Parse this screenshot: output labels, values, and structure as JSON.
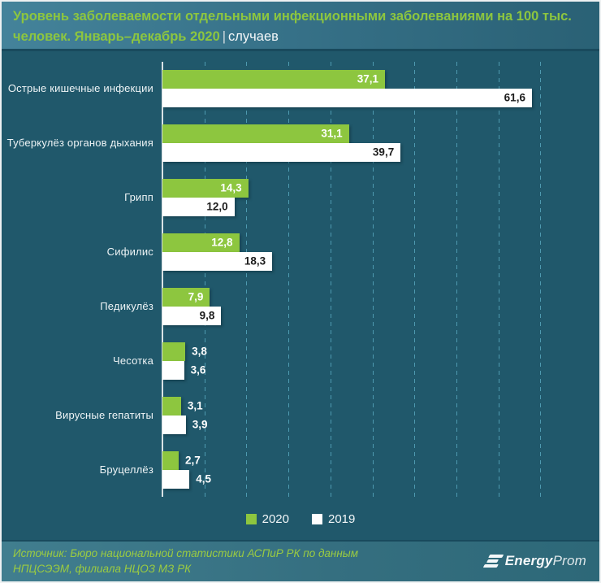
{
  "header": {
    "title": "Уровень заболеваемости отдельными инфекционными заболеваниями на 100 тыс. человек. Январь–декабрь 2020",
    "separator": "|",
    "unit": "случаев"
  },
  "chart_data": {
    "type": "bar",
    "orientation": "horizontal",
    "title": "Уровень заболеваемости отдельными инфекционными заболеваниями на 100 тыс. человек. Январь–декабрь 2020, случаев",
    "categories": [
      "Острые кишечные инфекции",
      "Туберкулёз органов дыхания",
      "Грипп",
      "Сифилис",
      "Педикулёз",
      "Чесотка",
      "Вирусные гепатиты",
      "Бруцеллёз"
    ],
    "series": [
      {
        "name": "2020",
        "color": "#8dc63f",
        "label_color_inside": "#ffffff",
        "values": [
          37.1,
          31.1,
          14.3,
          12.8,
          7.9,
          3.8,
          3.1,
          2.7
        ]
      },
      {
        "name": "2019",
        "color": "#ffffff",
        "label_color_inside": "#1c1c1c",
        "values": [
          61.6,
          39.7,
          12.0,
          18.3,
          9.8,
          3.6,
          3.9,
          4.5
        ]
      }
    ],
    "xlim": [
      0,
      70
    ],
    "gridline_step": 7,
    "gridlines_visible": 9,
    "grid": true,
    "legend_position": "bottom",
    "value_decimal_separator": ",",
    "label_outside_below": 7
  },
  "footer": {
    "source": "Источник: Бюро национальной статистики АСПиР РК по данным НПЦСЭЭМ, филиала НЦОЗ МЗ РК",
    "logo_bold": "Energy",
    "logo_light": "Prom"
  },
  "colors": {
    "background": "#20586b",
    "accent_green": "#8dc63f",
    "bar_white": "#ffffff",
    "gridline": "#4e9ab0",
    "header_gradient_start": "#44839a",
    "header_gradient_end": "#2a6175",
    "source_text": "#9bcb41"
  }
}
